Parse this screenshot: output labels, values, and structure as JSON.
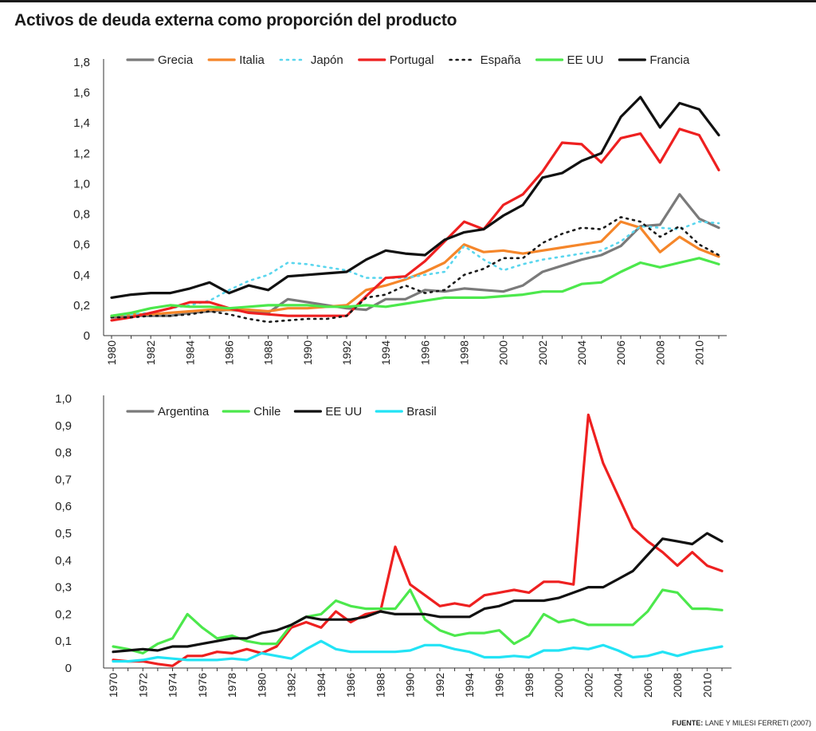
{
  "title": "Activos de deuda externa como proporción del producto",
  "source": {
    "label": "FUENTE:",
    "text": "LANE Y MILESI FERRETI (2007)"
  },
  "chart_data": [
    {
      "type": "line",
      "ylim": [
        0,
        1.8
      ],
      "yticks": [
        "0",
        "0,2",
        "0,4",
        "0,6",
        "0,8",
        "1,0",
        "1,2",
        "1,4",
        "1,6",
        "1,8"
      ],
      "ytick_values": [
        0,
        0.2,
        0.4,
        0.6,
        0.8,
        1.0,
        1.2,
        1.4,
        1.6,
        1.8
      ],
      "x": [
        1980,
        1981,
        1982,
        1983,
        1984,
        1985,
        1986,
        1987,
        1988,
        1989,
        1990,
        1991,
        1992,
        1993,
        1994,
        1995,
        1996,
        1997,
        1998,
        1999,
        2000,
        2001,
        2002,
        2003,
        2004,
        2005,
        2006,
        2007,
        2008,
        2009,
        2010,
        2011
      ],
      "xticks": [
        "1980",
        "1982",
        "1984",
        "1986",
        "1988",
        "1990",
        "1992",
        "1994",
        "1996",
        "1998",
        "2000",
        "2002",
        "2004",
        "2006",
        "2008",
        "2010"
      ],
      "xtick_values": [
        1980,
        1982,
        1984,
        1986,
        1988,
        1990,
        1992,
        1994,
        1996,
        1998,
        2000,
        2002,
        2004,
        2006,
        2008,
        2010
      ],
      "legend_position": "top",
      "series": [
        {
          "name": "Grecia",
          "color": "#7a7a7a",
          "dash": "solid",
          "values": [
            0.12,
            0.13,
            0.13,
            0.13,
            0.15,
            0.16,
            0.17,
            0.16,
            0.15,
            0.24,
            0.22,
            0.2,
            0.18,
            0.17,
            0.24,
            0.24,
            0.3,
            0.29,
            0.31,
            0.3,
            0.29,
            0.33,
            0.42,
            0.46,
            0.5,
            0.53,
            0.59,
            0.72,
            0.73,
            0.93,
            0.77,
            0.71
          ]
        },
        {
          "name": "Italia",
          "color": "#f5862a",
          "dash": "solid",
          "values": [
            0.13,
            0.14,
            0.14,
            0.15,
            0.16,
            0.17,
            0.17,
            0.17,
            0.16,
            0.18,
            0.18,
            0.19,
            0.2,
            0.3,
            0.33,
            0.37,
            0.42,
            0.48,
            0.6,
            0.55,
            0.56,
            0.54,
            0.56,
            0.58,
            0.6,
            0.62,
            0.75,
            0.71,
            0.55,
            0.65,
            0.57,
            0.52
          ]
        },
        {
          "name": "Japón",
          "color": "#5ad6ee",
          "dash": "dotted",
          "values": [
            0.13,
            0.14,
            0.15,
            0.18,
            0.2,
            0.23,
            0.3,
            0.36,
            0.4,
            0.48,
            0.47,
            0.45,
            0.43,
            0.38,
            0.38,
            0.38,
            0.4,
            0.42,
            0.59,
            0.5,
            0.43,
            0.47,
            0.5,
            0.52,
            0.54,
            0.56,
            0.62,
            0.72,
            0.71,
            0.7,
            0.75,
            0.74
          ]
        },
        {
          "name": "Portugal",
          "color": "#ee2020",
          "dash": "solid",
          "values": [
            0.1,
            0.12,
            0.15,
            0.18,
            0.22,
            0.22,
            0.18,
            0.15,
            0.14,
            0.13,
            0.13,
            0.13,
            0.13,
            0.26,
            0.38,
            0.39,
            0.49,
            0.62,
            0.75,
            0.7,
            0.86,
            0.93,
            1.08,
            1.27,
            1.26,
            1.14,
            1.3,
            1.33,
            1.14,
            1.36,
            1.32,
            1.09
          ]
        },
        {
          "name": "España",
          "color": "#1a1a1a",
          "dash": "dotted",
          "values": [
            0.12,
            0.12,
            0.13,
            0.13,
            0.14,
            0.16,
            0.14,
            0.11,
            0.09,
            0.1,
            0.11,
            0.11,
            0.13,
            0.25,
            0.27,
            0.33,
            0.28,
            0.3,
            0.4,
            0.44,
            0.51,
            0.51,
            0.61,
            0.67,
            0.71,
            0.7,
            0.78,
            0.75,
            0.65,
            0.72,
            0.6,
            0.53
          ]
        },
        {
          "name": "EE UU",
          "color": "#4ce84c",
          "dash": "solid",
          "values": [
            0.13,
            0.15,
            0.18,
            0.2,
            0.19,
            0.19,
            0.18,
            0.19,
            0.2,
            0.2,
            0.2,
            0.19,
            0.19,
            0.2,
            0.19,
            0.21,
            0.23,
            0.25,
            0.25,
            0.25,
            0.26,
            0.27,
            0.29,
            0.29,
            0.34,
            0.35,
            0.42,
            0.48,
            0.45,
            0.48,
            0.51,
            0.47
          ]
        },
        {
          "name": "Francia",
          "color": "#111111",
          "dash": "solid",
          "values": [
            0.25,
            0.27,
            0.28,
            0.28,
            0.31,
            0.35,
            0.28,
            0.33,
            0.3,
            0.39,
            0.4,
            0.41,
            0.42,
            0.5,
            0.56,
            0.54,
            0.53,
            0.63,
            0.68,
            0.7,
            0.79,
            0.86,
            1.04,
            1.07,
            1.15,
            1.2,
            1.44,
            1.57,
            1.37,
            1.53,
            1.49,
            1.32
          ]
        }
      ]
    },
    {
      "type": "line",
      "ylim": [
        0,
        1.0
      ],
      "yticks": [
        "0",
        "0,1",
        "0,2",
        "0,3",
        "0,4",
        "0,5",
        "0,6",
        "0,7",
        "0,8",
        "0,9",
        "1,0"
      ],
      "ytick_values": [
        0,
        0.1,
        0.2,
        0.3,
        0.4,
        0.5,
        0.6,
        0.7,
        0.8,
        0.9,
        1.0
      ],
      "x": [
        1970,
        1971,
        1972,
        1973,
        1974,
        1975,
        1976,
        1977,
        1978,
        1979,
        1980,
        1981,
        1982,
        1983,
        1984,
        1985,
        1986,
        1987,
        1988,
        1989,
        1990,
        1991,
        1992,
        1993,
        1994,
        1995,
        1996,
        1997,
        1998,
        1999,
        2000,
        2001,
        2002,
        2003,
        2004,
        2005,
        2006,
        2007,
        2008,
        2009,
        2010,
        2011
      ],
      "xticks": [
        "1970",
        "1972",
        "1974",
        "1976",
        "1978",
        "1980",
        "1982",
        "1984",
        "1986",
        "1988",
        "1990",
        "1992",
        "1994",
        "1996",
        "1998",
        "2000",
        "2002",
        "2004",
        "2006",
        "2008",
        "2010"
      ],
      "xtick_values": [
        1970,
        1972,
        1974,
        1976,
        1978,
        1980,
        1982,
        1984,
        1986,
        1988,
        1990,
        1992,
        1994,
        1996,
        1998,
        2000,
        2002,
        2004,
        2006,
        2008,
        2010
      ],
      "legend_position": "top",
      "series": [
        {
          "name": "Argentina",
          "color": "#ee2020",
          "dash": "solid",
          "legend_color": "#7a7a7a",
          "values": [
            0.03,
            0.025,
            0.025,
            0.015,
            0.008,
            0.045,
            0.045,
            0.06,
            0.055,
            0.07,
            0.055,
            0.08,
            0.15,
            0.17,
            0.15,
            0.21,
            0.17,
            0.2,
            0.21,
            0.45,
            0.31,
            0.27,
            0.23,
            0.24,
            0.23,
            0.27,
            0.28,
            0.29,
            0.28,
            0.32,
            0.32,
            0.31,
            0.94,
            0.76,
            0.64,
            0.52,
            0.47,
            0.43,
            0.38,
            0.43,
            0.38,
            0.36
          ]
        },
        {
          "name": "Chile",
          "color": "#4ce84c",
          "dash": "solid",
          "values": [
            0.08,
            0.07,
            0.055,
            0.09,
            0.11,
            0.2,
            0.15,
            0.11,
            0.12,
            0.1,
            0.09,
            0.09,
            0.16,
            0.19,
            0.2,
            0.25,
            0.23,
            0.22,
            0.22,
            0.22,
            0.29,
            0.18,
            0.14,
            0.12,
            0.13,
            0.13,
            0.14,
            0.09,
            0.12,
            0.2,
            0.17,
            0.18,
            0.16,
            0.16,
            0.16,
            0.16,
            0.21,
            0.29,
            0.28,
            0.22,
            0.22,
            0.215
          ]
        },
        {
          "name": "EE UU",
          "color": "#111111",
          "dash": "solid",
          "values": [
            0.06,
            0.065,
            0.07,
            0.065,
            0.08,
            0.08,
            0.09,
            0.1,
            0.11,
            0.11,
            0.13,
            0.14,
            0.16,
            0.19,
            0.18,
            0.18,
            0.18,
            0.19,
            0.21,
            0.2,
            0.2,
            0.2,
            0.19,
            0.19,
            0.19,
            0.22,
            0.23,
            0.25,
            0.25,
            0.25,
            0.26,
            0.28,
            0.3,
            0.3,
            0.33,
            0.36,
            0.42,
            0.48,
            0.47,
            0.46,
            0.5,
            0.47
          ]
        },
        {
          "name": "Brasil",
          "color": "#22e3f5",
          "dash": "solid",
          "values": [
            0.025,
            0.025,
            0.03,
            0.04,
            0.035,
            0.03,
            0.03,
            0.03,
            0.035,
            0.03,
            0.055,
            0.045,
            0.035,
            0.07,
            0.1,
            0.07,
            0.06,
            0.06,
            0.06,
            0.06,
            0.065,
            0.085,
            0.085,
            0.07,
            0.06,
            0.04,
            0.04,
            0.045,
            0.04,
            0.065,
            0.065,
            0.075,
            0.07,
            0.085,
            0.065,
            0.04,
            0.045,
            0.06,
            0.045,
            0.06,
            0.07,
            0.08
          ]
        }
      ]
    }
  ]
}
